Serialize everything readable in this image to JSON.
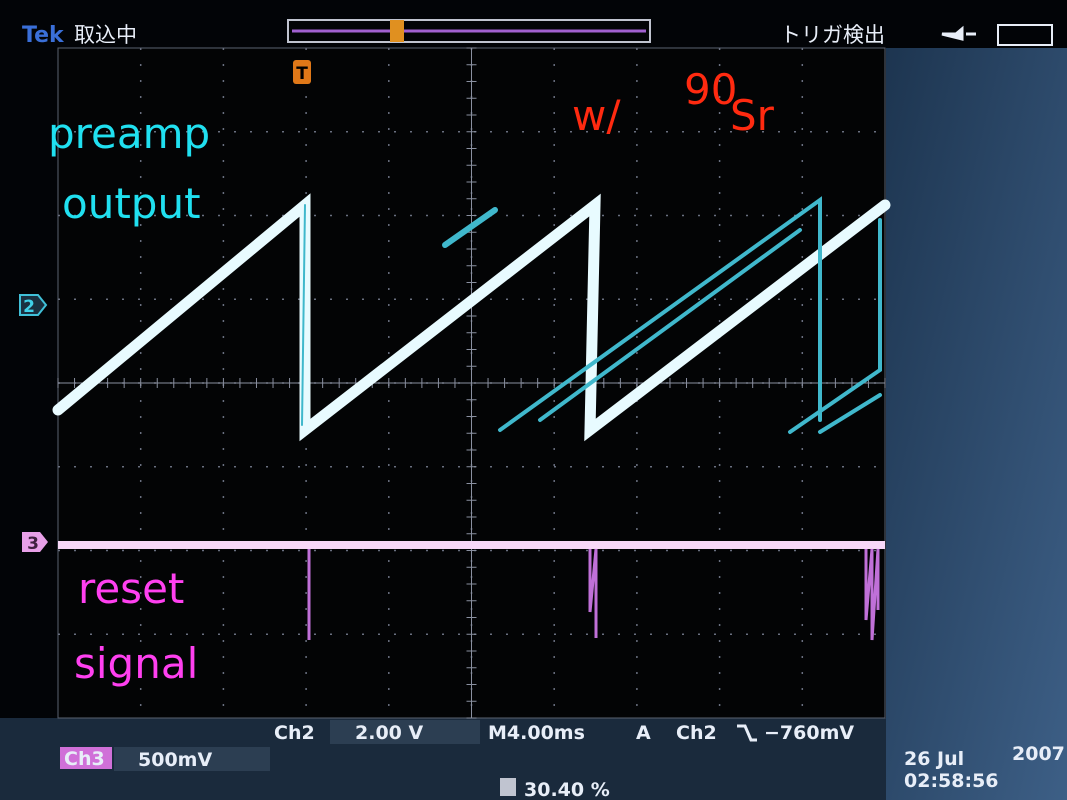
{
  "header": {
    "brand": "Tek",
    "status": "取込中",
    "trigger_status": "トリガ検出",
    "trigger_marker": "T"
  },
  "annotations": {
    "preamp_line1": "preamp",
    "preamp_line2": "output",
    "source_prefix": "w/",
    "source_mass": "90",
    "source_element": "Sr",
    "reset_line1": "reset",
    "reset_line2": "signal"
  },
  "markers": {
    "ch2": "2",
    "ch3": "3"
  },
  "footer": {
    "ch2_label": "Ch2",
    "ch2_scale": "2.00 V",
    "timebase": "M4.00ms",
    "trigger_mode": "A",
    "trigger_source": "Ch2",
    "trigger_level": "−760mV",
    "ch3_label": "Ch3",
    "ch3_scale": "500mV",
    "trigger_position": "30.40 %",
    "date": "26 Jul",
    "year": "2007",
    "time": "02:58:56"
  }
}
